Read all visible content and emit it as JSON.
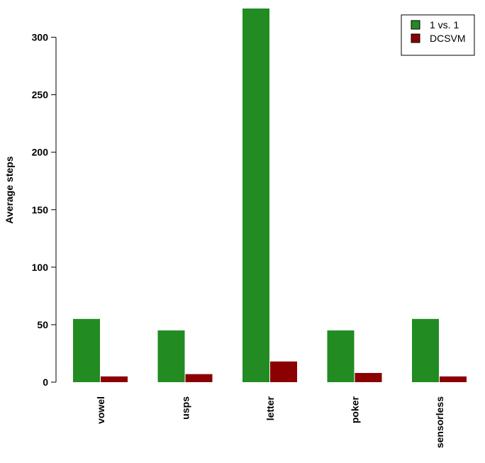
{
  "chart_data": {
    "type": "bar",
    "title": "",
    "xlabel": "",
    "ylabel": "Average steps",
    "categories": [
      "vowel",
      "usps",
      "letter",
      "poker",
      "sensorless"
    ],
    "series": [
      {
        "name": "1 vs. 1",
        "values": [
          55,
          45,
          325,
          45,
          55
        ],
        "color": "#228b22"
      },
      {
        "name": "DCSVM",
        "values": [
          5,
          7,
          18,
          8,
          5
        ],
        "color": "#8b0000"
      }
    ],
    "yticks": [
      0,
      50,
      100,
      150,
      200,
      250,
      300
    ],
    "ylim": [
      0,
      325
    ],
    "grid": false,
    "legend_position": "top-right"
  }
}
